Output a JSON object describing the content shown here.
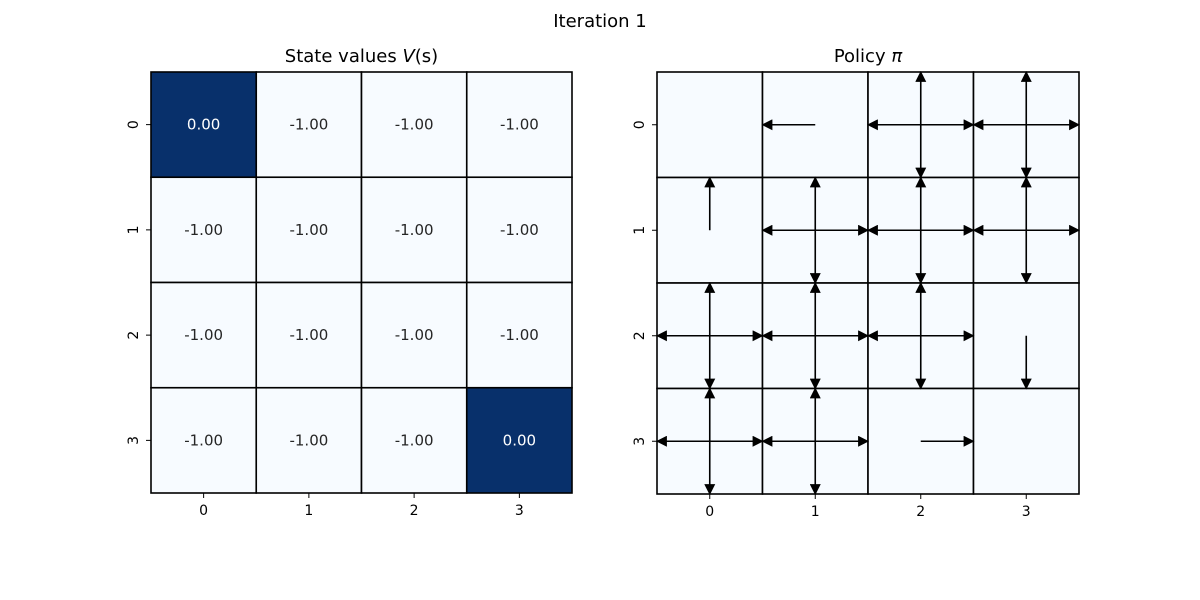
{
  "figure": {
    "suptitle": "Iteration 1"
  },
  "chart_data": [
    {
      "type": "heatmap",
      "title_prefix": "State values ",
      "title_math": "V",
      "title_suffix": "(s)",
      "x_ticks": [
        "0",
        "1",
        "2",
        "3"
      ],
      "y_ticks": [
        "0",
        "1",
        "2",
        "3"
      ],
      "grid": true,
      "colorbar": false,
      "colormap": {
        "low": "#f7fbff",
        "high": "#08306b"
      },
      "values": [
        [
          0.0,
          -1.0,
          -1.0,
          -1.0
        ],
        [
          -1.0,
          -1.0,
          -1.0,
          -1.0
        ],
        [
          -1.0,
          -1.0,
          -1.0,
          -1.0
        ],
        [
          -1.0,
          -1.0,
          -1.0,
          0.0
        ]
      ],
      "cell_labels": [
        [
          "0.00",
          "-1.00",
          "-1.00",
          "-1.00"
        ],
        [
          "-1.00",
          "-1.00",
          "-1.00",
          "-1.00"
        ],
        [
          "-1.00",
          "-1.00",
          "-1.00",
          "-1.00"
        ],
        [
          "-1.00",
          "-1.00",
          "-1.00",
          "0.00"
        ]
      ],
      "label_colors": {
        "on_dark": "#ffffff",
        "on_light": "#262626"
      }
    },
    {
      "type": "heatmap",
      "title_prefix": "Policy ",
      "title_math": "π",
      "x_ticks": [
        "0",
        "1",
        "2",
        "3"
      ],
      "y_ticks": [
        "0",
        "1",
        "2",
        "3"
      ],
      "grid": true,
      "cell_color": "#f7fbff",
      "arrow_color": "#000000",
      "policy": [
        [
          [],
          [
            "left"
          ],
          [
            "up",
            "down",
            "left",
            "right"
          ],
          [
            "up",
            "down",
            "left",
            "right"
          ]
        ],
        [
          [
            "up"
          ],
          [
            "up",
            "down",
            "left",
            "right"
          ],
          [
            "up",
            "down",
            "left",
            "right"
          ],
          [
            "up",
            "down",
            "left",
            "right"
          ]
        ],
        [
          [
            "up",
            "down",
            "left",
            "right"
          ],
          [
            "up",
            "down",
            "left",
            "right"
          ],
          [
            "up",
            "down",
            "left",
            "right"
          ],
          [
            "down"
          ]
        ],
        [
          [
            "up",
            "down",
            "left",
            "right"
          ],
          [
            "up",
            "down",
            "left",
            "right"
          ],
          [
            "right"
          ],
          []
        ]
      ]
    }
  ]
}
